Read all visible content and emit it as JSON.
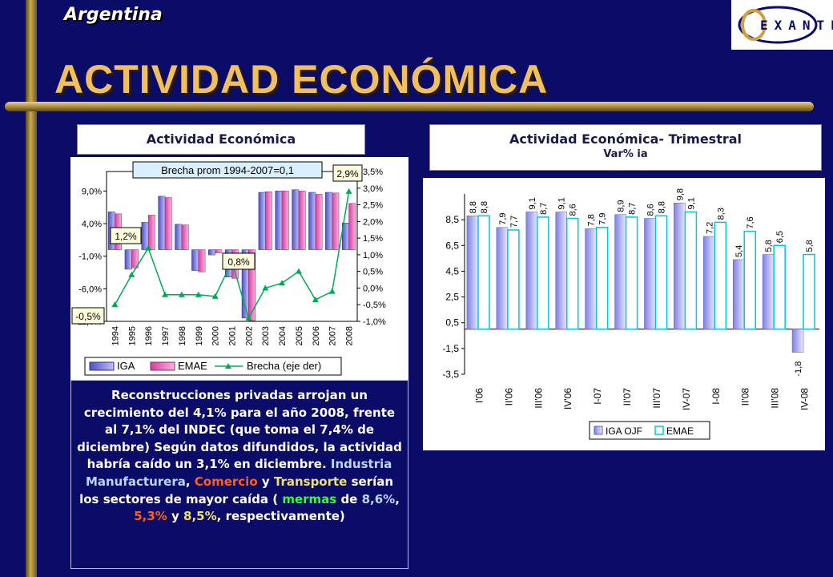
{
  "header": {
    "country": "Argentina",
    "title": "ACTIVIDAD ECONÓMICA",
    "logo_text": "EXANTE"
  },
  "left_chart": {
    "box_title": "Actividad Económica"
  },
  "right_chart": {
    "box_title": "Actividad Económica- Trimestral",
    "box_subtitle": "Var% ia"
  },
  "chart_data": [
    {
      "type": "bar",
      "title": "Actividad Económica",
      "categories": [
        "1994",
        "1995",
        "1996",
        "1997",
        "1998",
        "1999",
        "2000",
        "2001",
        "2002",
        "2003",
        "2004",
        "2005",
        "2006",
        "2007",
        "2008"
      ],
      "series": [
        {
          "name": "IGA",
          "values": [
            5.8,
            -3.0,
            4.2,
            8.2,
            3.9,
            -3.2,
            -0.8,
            -4.2,
            -10.5,
            8.8,
            9.0,
            9.2,
            8.8,
            8.8,
            4.1
          ]
        },
        {
          "name": "EMAE",
          "values": [
            5.5,
            -2.8,
            5.3,
            8.0,
            3.8,
            -3.4,
            -0.5,
            -4.4,
            -10.9,
            8.9,
            9.0,
            9.0,
            8.5,
            8.7,
            7.1
          ]
        },
        {
          "name": "Brecha (eje der)",
          "axis": "right",
          "values": [
            -0.5,
            0.4,
            1.2,
            -0.2,
            -0.2,
            -0.2,
            -0.25,
            0.8,
            -0.9,
            0.0,
            0.15,
            0.5,
            -0.35,
            -0.1,
            2.9
          ]
        }
      ],
      "y_left": {
        "ylim": [
          -11,
          12
        ],
        "ticks": [
          "9,0%",
          "4,0%",
          "-1,0%",
          "-6,0%",
          "-11,0%"
        ],
        "tick_values": [
          9,
          4,
          -1,
          -6,
          -11
        ]
      },
      "y_right": {
        "ylim": [
          -1.0,
          3.5
        ],
        "ticks": [
          "3,5%",
          "3,0%",
          "2,5%",
          "2,0%",
          "1,5%",
          "1,0%",
          "0,5%",
          "0,0%",
          "-0,5%",
          "-1,0%"
        ],
        "tick_values": [
          3.5,
          3.0,
          2.5,
          2.0,
          1.5,
          1.0,
          0.5,
          0.0,
          -0.5,
          -1.0
        ]
      },
      "annotations": [
        {
          "text": "Brecha prom 1994-2007=0,1"
        },
        {
          "text": "-0,5%",
          "category": "1994"
        },
        {
          "text": "1,2%",
          "category": "1996"
        },
        {
          "text": "0,8%",
          "category": "2001"
        },
        {
          "text": "2,9%",
          "category": "2008"
        }
      ],
      "legend": [
        "IGA",
        "EMAE",
        "Brecha (eje der)"
      ],
      "legend_position": "bottom",
      "colors": {
        "IGA": "#8080e0",
        "EMAE": "#ff66cc",
        "Brecha": "#00aa55"
      }
    },
    {
      "type": "bar",
      "title": "Actividad Económica- Trimestral",
      "subtitle": "Var% ia",
      "categories": [
        "I'06",
        "II'06",
        "III'06",
        "IV'06",
        "I-07",
        "II'07",
        "III'07",
        "IV-07",
        "I-08",
        "II'08",
        "III'08",
        "IV-08"
      ],
      "series": [
        {
          "name": "IGA OJF",
          "values": [
            8.8,
            7.9,
            9.1,
            9.1,
            7.8,
            8.9,
            8.6,
            9.8,
            7.2,
            5.4,
            5.8,
            -1.8
          ],
          "labels": [
            "8,8",
            "7,9",
            "9,1",
            "9,1",
            "7,8",
            "8,9",
            "8,6",
            "9,8",
            "7,2",
            "5,4",
            "5,8",
            "-1,8"
          ]
        },
        {
          "name": "EMAE",
          "values": [
            8.8,
            7.7,
            8.7,
            8.6,
            7.9,
            8.7,
            8.8,
            9.1,
            8.3,
            7.6,
            6.5,
            5.8
          ],
          "labels": [
            "8,8",
            "7,7",
            "8,7",
            "8,6",
            "7,9",
            "8,7",
            "8,8",
            "9,1",
            "8,3",
            "7,6",
            "6,5",
            "5,8"
          ]
        }
      ],
      "ylim": [
        -3.5,
        10.5
      ],
      "yticks": [
        "8,5",
        "6,5",
        "4,5",
        "2,5",
        "0,5",
        "-1,5",
        "-3,5"
      ],
      "ytick_values": [
        8.5,
        6.5,
        4.5,
        2.5,
        0.5,
        -1.5,
        -3.5
      ],
      "legend": [
        "IGA OJF",
        "EMAE"
      ],
      "legend_position": "bottom",
      "colors": {
        "IGA OJF": "#a0a0f0",
        "EMAE": "#b0ffff"
      }
    }
  ],
  "commentary": {
    "p1": "Reconstrucciones privadas arrojan un crecimiento del 4,1% para el año 2008, frente al 7,1% del INDEC (que toma el 7,4% de diciembre) Según datos difundidos, la actividad habría caído un 3,1% en diciembre.",
    "s1": "Industria Manufacturera",
    "t1": ", ",
    "s2": "Comercio",
    "t2": " y ",
    "s3": "Transporte",
    "t3": " serían los sectores de mayor caída ( ",
    "s4": "mermas",
    "t4": " de ",
    "v1": "8,6%",
    "t5": ", ",
    "v2": "5,3%",
    "t6": " y ",
    "v3": "8,5%",
    "t7": ", respectivamente)"
  }
}
